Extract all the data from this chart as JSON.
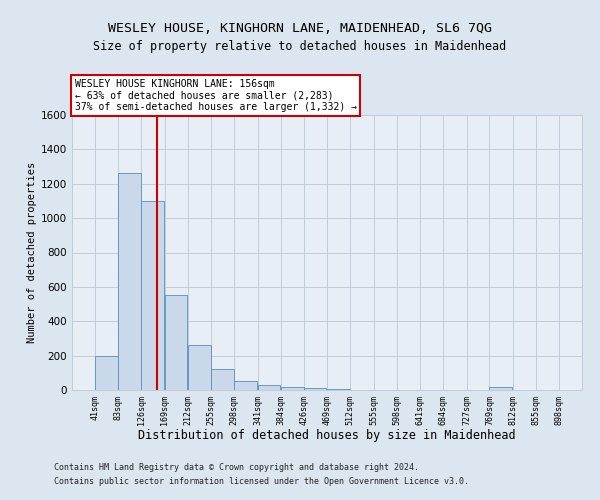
{
  "title1": "WESLEY HOUSE, KINGHORN LANE, MAIDENHEAD, SL6 7QG",
  "title2": "Size of property relative to detached houses in Maidenhead",
  "xlabel": "Distribution of detached houses by size in Maidenhead",
  "ylabel": "Number of detached properties",
  "footer1": "Contains HM Land Registry data © Crown copyright and database right 2024.",
  "footer2": "Contains public sector information licensed under the Open Government Licence v3.0.",
  "bin_edges": [
    41,
    83,
    126,
    169,
    212,
    255,
    298,
    341,
    384,
    426,
    469,
    512,
    555,
    598,
    641,
    684,
    727,
    769,
    812,
    855,
    898
  ],
  "bar_heights": [
    200,
    1260,
    1100,
    550,
    260,
    120,
    55,
    30,
    20,
    10,
    5,
    2,
    2,
    1,
    0,
    0,
    0,
    15,
    0,
    0
  ],
  "bar_color": "#c9d9ea",
  "bar_edge_color": "#5b8db8",
  "property_line_x": 156,
  "property_line_color": "#cc0000",
  "annotation_text": "WESLEY HOUSE KINGHORN LANE: 156sqm\n← 63% of detached houses are smaller (2,283)\n37% of semi-detached houses are larger (1,332) →",
  "annotation_box_color": "#ffffff",
  "annotation_box_edge_color": "#cc0000",
  "ylim": [
    0,
    1600
  ],
  "yticks": [
    0,
    200,
    400,
    600,
    800,
    1000,
    1200,
    1400,
    1600
  ],
  "bg_color": "#dce6f0",
  "plot_bg_color": "#e8eef5",
  "grid_color": "#c0ccd8",
  "title1_fontsize": 9.5,
  "title2_fontsize": 8.5,
  "xlabel_fontsize": 8.5,
  "ylabel_fontsize": 7.5,
  "footer_fontsize": 6.0
}
